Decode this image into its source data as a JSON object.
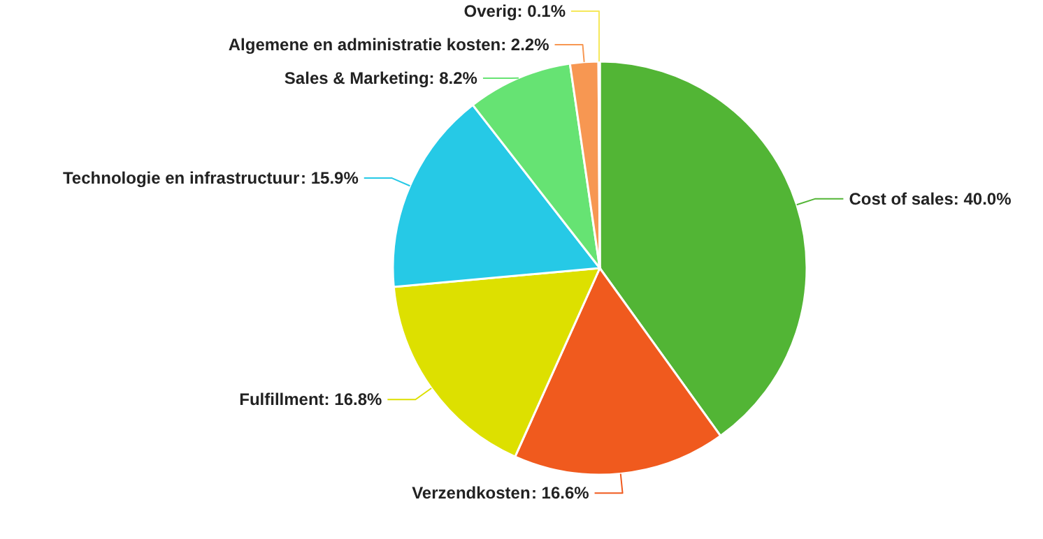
{
  "chart_data": {
    "type": "pie",
    "categories": [
      "Cost of sales",
      "Verzendkosten",
      "Fulfillment",
      "Technologie en infrastructuur",
      "Sales & Marketing",
      "Algemene en administratie kosten",
      "Overig"
    ],
    "values": [
      40.0,
      16.6,
      16.8,
      15.9,
      8.2,
      2.2,
      0.1
    ],
    "value_labels": [
      ": 40.0%",
      ": 16.6%",
      ": 16.8%",
      ": 15.9%",
      ": 8.2%",
      ": 2.2%",
      ": 0.1%"
    ],
    "colors": [
      "#52b535",
      "#f05a1e",
      "#dde000",
      "#26c9e6",
      "#66e373",
      "#f79752",
      "#f5e85a"
    ],
    "legend": false
  }
}
